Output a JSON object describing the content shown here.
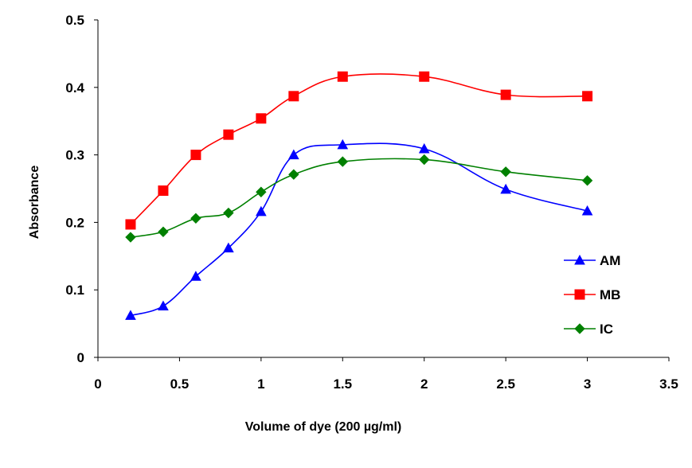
{
  "chart_data": {
    "type": "line",
    "title": "",
    "xlabel": "Volume of dye (200 µg/ml)",
    "ylabel": "Absorbance",
    "xlim": [
      0,
      3.5
    ],
    "ylim": [
      0,
      0.5
    ],
    "xticks": [
      "0",
      "0.5",
      "1",
      "1.5",
      "2",
      "2.5",
      "3",
      "3.5"
    ],
    "yticks": [
      "0",
      "0.1",
      "0.2",
      "0.3",
      "0.4",
      "0.5"
    ],
    "grid": false,
    "legend_position": "right",
    "series": [
      {
        "name": "AM",
        "color": "#0000ff",
        "marker": "triangle",
        "x": [
          0.2,
          0.4,
          0.6,
          0.8,
          1.0,
          1.2,
          1.5,
          2.0,
          2.5,
          3.0
        ],
        "y": [
          0.062,
          0.076,
          0.12,
          0.162,
          0.216,
          0.3,
          0.315,
          0.309,
          0.249,
          0.217
        ]
      },
      {
        "name": "MB",
        "color": "#ff0000",
        "marker": "square",
        "x": [
          0.2,
          0.4,
          0.6,
          0.8,
          1.0,
          1.2,
          1.5,
          2.0,
          2.5,
          3.0
        ],
        "y": [
          0.197,
          0.247,
          0.3,
          0.33,
          0.354,
          0.387,
          0.416,
          0.416,
          0.389,
          0.387
        ]
      },
      {
        "name": "IC",
        "color": "#008000",
        "marker": "diamond",
        "x": [
          0.2,
          0.4,
          0.6,
          0.8,
          1.0,
          1.2,
          1.5,
          2.0,
          2.5,
          3.0
        ],
        "y": [
          0.178,
          0.186,
          0.206,
          0.214,
          0.245,
          0.271,
          0.29,
          0.293,
          0.275,
          0.262
        ]
      }
    ]
  }
}
